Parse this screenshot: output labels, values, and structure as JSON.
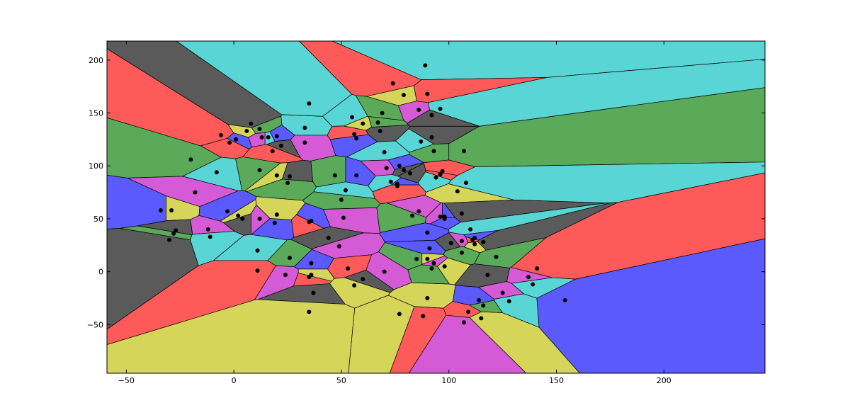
{
  "chart_data": {
    "type": "scatter",
    "title": "",
    "xlabel": "",
    "ylabel": "",
    "xlim": [
      -59,
      247
    ],
    "ylim": [
      -96,
      218
    ],
    "xticks": [
      -50,
      0,
      50,
      100,
      150,
      200
    ],
    "yticks": [
      -50,
      0,
      50,
      100,
      150,
      200
    ],
    "xtick_labels": [
      "−50",
      "0",
      "50",
      "100",
      "150",
      "200"
    ],
    "ytick_labels": [
      "−50",
      "0",
      "50",
      "100",
      "150",
      "200"
    ],
    "grid": false,
    "legend": "none",
    "point_color": "#000000",
    "region_colors": [
      "#5a5aff",
      "#5ad5d5",
      "#5aaa5a",
      "#d5d55a",
      "#ff5a5a",
      "#d55ad5",
      "#5a5a5a"
    ],
    "points": [
      [
        -34,
        58
      ],
      [
        -29,
        58
      ],
      [
        -27,
        39
      ],
      [
        -28,
        36
      ],
      [
        -30,
        30
      ],
      [
        -20,
        106
      ],
      [
        -18,
        75
      ],
      [
        -8,
        94
      ],
      [
        -12,
        40
      ],
      [
        -11,
        33
      ],
      [
        -6,
        129
      ],
      [
        -3,
        57
      ],
      [
        -2,
        122
      ],
      [
        1,
        125
      ],
      [
        2,
        53
      ],
      [
        4,
        50
      ],
      [
        6,
        133
      ],
      [
        8,
        140
      ],
      [
        12,
        135
      ],
      [
        13,
        127
      ],
      [
        12,
        96
      ],
      [
        12,
        50
      ],
      [
        11,
        20
      ],
      [
        11,
        1
      ],
      [
        16,
        127
      ],
      [
        18,
        114
      ],
      [
        19,
        46
      ],
      [
        20,
        91
      ],
      [
        20,
        128
      ],
      [
        20,
        54
      ],
      [
        22,
        119
      ],
      [
        25,
        84
      ],
      [
        26,
        90
      ],
      [
        26,
        13
      ],
      [
        24,
        -3
      ],
      [
        33,
        136
      ],
      [
        33,
        122
      ],
      [
        35,
        159
      ],
      [
        35,
        47
      ],
      [
        36,
        48
      ],
      [
        35,
        -5
      ],
      [
        36,
        8
      ],
      [
        36,
        -3
      ],
      [
        37,
        -20
      ],
      [
        35,
        -38
      ],
      [
        44,
        32
      ],
      [
        47,
        91
      ],
      [
        49,
        24
      ],
      [
        50,
        68
      ],
      [
        51,
        51
      ],
      [
        52,
        77
      ],
      [
        53,
        3
      ],
      [
        55,
        146
      ],
      [
        56,
        130
      ],
      [
        57,
        126
      ],
      [
        56,
        -13
      ],
      [
        57,
        91
      ],
      [
        60,
        140
      ],
      [
        60,
        -7
      ],
      [
        67,
        141
      ],
      [
        68,
        133
      ],
      [
        69,
        150
      ],
      [
        70,
        0
      ],
      [
        70,
        113
      ],
      [
        71,
        98
      ],
      [
        73,
        85
      ],
      [
        74,
        178
      ],
      [
        76,
        83
      ],
      [
        76,
        81
      ],
      [
        77,
        100
      ],
      [
        77,
        -40
      ],
      [
        79,
        96
      ],
      [
        79,
        167
      ],
      [
        82,
        93
      ],
      [
        83,
        53
      ],
      [
        86,
        57
      ],
      [
        85,
        12
      ],
      [
        86,
        153
      ],
      [
        87,
        123
      ],
      [
        88,
        -42
      ],
      [
        89,
        195
      ],
      [
        90,
        168
      ],
      [
        90,
        37
      ],
      [
        90,
        12
      ],
      [
        91,
        22
      ],
      [
        90,
        -25
      ],
      [
        92,
        127
      ],
      [
        92,
        3
      ],
      [
        92,
        148
      ],
      [
        93,
        114
      ],
      [
        93,
        8
      ],
      [
        94,
        89
      ],
      [
        96,
        52
      ],
      [
        96,
        154
      ],
      [
        97,
        95
      ],
      [
        98,
        52
      ],
      [
        96,
        92
      ],
      [
        98,
        50
      ],
      [
        98,
        5
      ],
      [
        101,
        27
      ],
      [
        104,
        76
      ],
      [
        106,
        55
      ],
      [
        106,
        18
      ],
      [
        106,
        29
      ],
      [
        107,
        114
      ],
      [
        107,
        -48
      ],
      [
        108,
        84
      ],
      [
        109,
        -38
      ],
      [
        110,
        40
      ],
      [
        111,
        30
      ],
      [
        112,
        32
      ],
      [
        112,
        26
      ],
      [
        114,
        -27
      ],
      [
        115,
        -44
      ],
      [
        116,
        28
      ],
      [
        116,
        -32
      ],
      [
        118,
        -3
      ],
      [
        122,
        14
      ],
      [
        125,
        -20
      ],
      [
        128,
        -28
      ],
      [
        137,
        -5
      ],
      [
        139,
        -12
      ],
      [
        141,
        3
      ],
      [
        154,
        -27
      ]
    ]
  }
}
